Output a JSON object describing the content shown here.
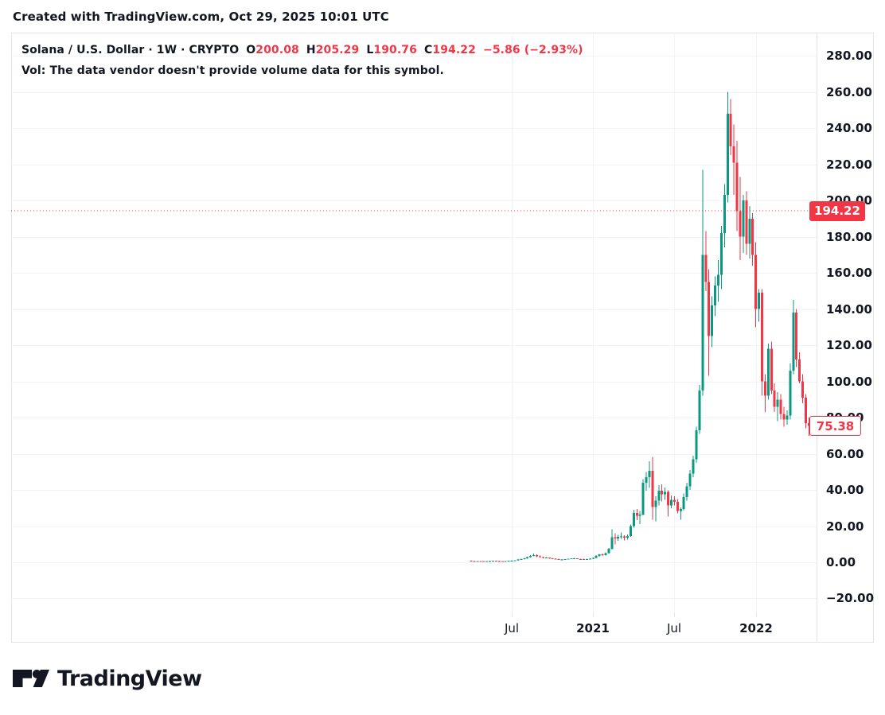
{
  "attribution": "Created with TradingView.com, Oct 29, 2025 10:01 UTC",
  "legend": {
    "title": "Solana / U.S. Dollar · 1W · CRYPTO",
    "k_o": "O",
    "v_o": "200.08",
    "k_h": "H",
    "v_h": "205.29",
    "k_l": "L",
    "v_l": "190.76",
    "k_c": "C",
    "v_c": "194.22",
    "change": "−5.86 (−2.93%)",
    "volume_note": "Vol: The data vendor doesn't provide volume data for this symbol."
  },
  "price_axis": {
    "ticks": [
      "280.00",
      "260.00",
      "240.00",
      "220.00",
      "200.00",
      "180.00",
      "160.00",
      "140.00",
      "120.00",
      "100.00",
      "80.00",
      "60.00",
      "40.00",
      "20.00",
      "0.00",
      "−20.00"
    ],
    "tick_values": [
      280,
      260,
      240,
      220,
      200,
      180,
      160,
      140,
      120,
      100,
      80,
      60,
      40,
      20,
      0,
      -20
    ],
    "current_badge": "194.22",
    "last_badge": "75.38"
  },
  "time_axis": [
    {
      "label": "Jul",
      "week": 13,
      "bold": false
    },
    {
      "label": "2021",
      "week": 39,
      "bold": true
    },
    {
      "label": "Jul",
      "week": 65,
      "bold": false
    },
    {
      "label": "2022",
      "week": 91,
      "bold": true
    }
  ],
  "logo": {
    "text": "TradingView"
  },
  "colors": {
    "up": "#089981",
    "down": "#F23645",
    "text": "#131722",
    "grid": "#F0F3FA",
    "border": "#E0E3EB",
    "accent_red": "#F23645",
    "badge_text": "#ffffff"
  },
  "chart_data": {
    "type": "candlestick",
    "symbol": "Solana / U.S. Dollar",
    "timeframe": "1W",
    "exchange": "CRYPTO",
    "start_week": "2020-04-06",
    "interval_days": 7,
    "ylim": [
      -20,
      280
    ],
    "y_grid_step": 20,
    "current_price": 194.22,
    "last_visible_close": 75.38,
    "candles": [
      [
        0.9,
        1.0,
        0.55,
        0.7
      ],
      [
        0.7,
        0.78,
        0.52,
        0.58
      ],
      [
        0.58,
        0.72,
        0.5,
        0.65
      ],
      [
        0.65,
        0.74,
        0.56,
        0.6
      ],
      [
        0.6,
        0.66,
        0.5,
        0.55
      ],
      [
        0.55,
        0.7,
        0.52,
        0.66
      ],
      [
        0.66,
        0.8,
        0.6,
        0.74
      ],
      [
        0.74,
        0.88,
        0.68,
        0.8
      ],
      [
        0.8,
        0.86,
        0.66,
        0.7
      ],
      [
        0.7,
        0.78,
        0.6,
        0.65
      ],
      [
        0.65,
        0.72,
        0.55,
        0.6
      ],
      [
        0.6,
        0.7,
        0.52,
        0.66
      ],
      [
        0.66,
        0.92,
        0.62,
        0.86
      ],
      [
        0.86,
        1.05,
        0.78,
        0.95
      ],
      [
        0.95,
        1.15,
        0.85,
        1.05
      ],
      [
        1.05,
        1.7,
        0.98,
        1.55
      ],
      [
        1.55,
        1.95,
        1.35,
        1.75
      ],
      [
        1.75,
        2.4,
        1.6,
        2.2
      ],
      [
        2.2,
        3.0,
        2.0,
        2.8
      ],
      [
        2.8,
        4.0,
        2.6,
        3.6
      ],
      [
        3.6,
        4.9,
        3.2,
        3.9
      ],
      [
        3.9,
        4.3,
        2.9,
        3.2
      ],
      [
        3.2,
        3.7,
        2.7,
        2.95
      ],
      [
        2.95,
        3.1,
        2.2,
        2.45
      ],
      [
        2.45,
        2.75,
        2.15,
        2.55
      ],
      [
        2.55,
        2.7,
        2.05,
        2.25
      ],
      [
        2.25,
        2.45,
        1.85,
        2.0
      ],
      [
        2.0,
        2.15,
        1.6,
        1.75
      ],
      [
        1.75,
        1.9,
        1.4,
        1.55
      ],
      [
        1.55,
        1.75,
        1.3,
        1.65
      ],
      [
        1.65,
        1.85,
        1.5,
        1.7
      ],
      [
        1.7,
        2.05,
        1.6,
        1.9
      ],
      [
        1.9,
        2.3,
        1.75,
        2.1
      ],
      [
        2.1,
        2.4,
        1.85,
        2.2
      ],
      [
        2.2,
        2.3,
        1.7,
        1.85
      ],
      [
        1.85,
        2.0,
        1.55,
        1.7
      ],
      [
        1.7,
        1.9,
        1.45,
        1.6
      ],
      [
        1.6,
        1.95,
        1.5,
        1.8
      ],
      [
        1.8,
        2.1,
        1.7,
        1.95
      ],
      [
        1.95,
        2.7,
        1.75,
        2.5
      ],
      [
        2.5,
        3.9,
        2.3,
        3.6
      ],
      [
        3.6,
        4.7,
        3.1,
        4.3
      ],
      [
        4.3,
        4.8,
        3.5,
        3.9
      ],
      [
        3.9,
        5.4,
        3.7,
        5.1
      ],
      [
        5.1,
        8.0,
        4.9,
        7.4
      ],
      [
        7.4,
        18.2,
        7.1,
        13.8
      ],
      [
        13.8,
        16.0,
        9.8,
        13.2
      ],
      [
        13.2,
        15.2,
        11.8,
        14.0
      ],
      [
        14.0,
        16.4,
        13.0,
        14.2
      ],
      [
        14.2,
        15.0,
        12.2,
        13.6
      ],
      [
        13.6,
        15.4,
        12.6,
        14.4
      ],
      [
        14.4,
        20.8,
        14.0,
        19.9
      ],
      [
        19.9,
        29.0,
        19.2,
        27.2
      ],
      [
        27.2,
        29.5,
        23.2,
        25.8
      ],
      [
        25.8,
        28.4,
        21.2,
        26.4
      ],
      [
        26.4,
        46.0,
        25.9,
        44.0
      ],
      [
        44.0,
        49.8,
        39.5,
        47.0
      ],
      [
        47.0,
        55.9,
        41.2,
        50.5
      ],
      [
        50.5,
        58.3,
        23.5,
        30.5
      ],
      [
        30.5,
        36.5,
        22.6,
        34.0
      ],
      [
        34.0,
        42.6,
        31.5,
        39.5
      ],
      [
        39.5,
        43.0,
        33.6,
        37.5
      ],
      [
        37.5,
        41.4,
        34.4,
        38.8
      ],
      [
        38.8,
        39.8,
        25.2,
        31.5
      ],
      [
        31.5,
        37.0,
        30.0,
        34.5
      ],
      [
        34.5,
        36.4,
        31.4,
        33.4
      ],
      [
        33.4,
        35.0,
        27.0,
        28.4
      ],
      [
        28.4,
        30.4,
        23.5,
        29.5
      ],
      [
        29.5,
        38.0,
        28.5,
        36.0
      ],
      [
        36.0,
        44.0,
        34.0,
        42.0
      ],
      [
        42.0,
        51.0,
        40.0,
        49.0
      ],
      [
        49.0,
        59.0,
        47.0,
        57.0
      ],
      [
        57.0,
        75.0,
        55.0,
        73.0
      ],
      [
        73.0,
        98.0,
        71.0,
        95.0
      ],
      [
        95.0,
        217.0,
        92.0,
        170.0
      ],
      [
        170.0,
        183.0,
        150.0,
        155.0
      ],
      [
        155.0,
        162.0,
        103.0,
        125.0
      ],
      [
        125.0,
        147.0,
        119.0,
        142.0
      ],
      [
        142.0,
        158.0,
        136.0,
        153.0
      ],
      [
        153.0,
        167.0,
        144.0,
        159.0
      ],
      [
        159.0,
        186.0,
        151.0,
        182.0
      ],
      [
        182.0,
        209.0,
        174.0,
        203.0
      ],
      [
        203.0,
        260.0,
        199.0,
        248.0
      ],
      [
        248.0,
        256.0,
        225.0,
        230.0
      ],
      [
        230.0,
        242.0,
        203.0,
        221.0
      ],
      [
        221.0,
        233.0,
        183.0,
        194.0
      ],
      [
        194.0,
        213.0,
        167.0,
        180.0
      ],
      [
        180.0,
        203.0,
        171.0,
        200.0
      ],
      [
        200.0,
        205.0,
        170.0,
        176.0
      ],
      [
        176.0,
        197.0,
        168.0,
        190.0
      ],
      [
        190.0,
        193.0,
        164.0,
        170.0
      ],
      [
        170,
        177,
        130,
        140
      ],
      [
        140,
        151,
        133,
        149
      ],
      [
        149,
        151,
        92,
        100
      ],
      [
        100,
        104,
        83,
        92
      ],
      [
        92,
        121,
        90,
        118
      ],
      [
        118,
        122,
        93,
        95
      ],
      [
        95,
        99,
        83,
        86
      ],
      [
        86,
        94,
        78,
        90
      ],
      [
        90,
        93,
        79,
        82
      ],
      [
        82,
        86,
        75,
        79
      ],
      [
        79,
        84,
        76,
        81
      ],
      [
        81,
        110,
        79,
        106
      ],
      [
        106,
        145,
        104,
        138
      ],
      [
        138,
        140,
        108,
        112
      ],
      [
        112,
        116,
        99,
        100
      ],
      [
        100,
        104,
        88,
        91
      ],
      [
        91,
        93,
        74,
        77
      ],
      [
        77,
        80,
        70,
        75.38
      ]
    ]
  }
}
